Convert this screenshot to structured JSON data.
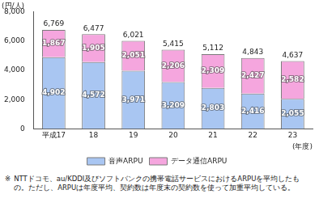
{
  "chart_data": {
    "type": "bar",
    "stacked": true,
    "data_labels": true,
    "grid": false,
    "legend": "bottom",
    "y_label": "(円/人)",
    "x_label": "(年度)",
    "categories": [
      "平成17",
      "18",
      "19",
      "20",
      "21",
      "22",
      "23"
    ],
    "series": [
      {
        "name": "音声ARPU",
        "color": "#a9c6f2",
        "values": [
          4902,
          4572,
          3971,
          3209,
          2803,
          2416,
          2055
        ],
        "value_labels": [
          "4,902",
          "4,572",
          "3,971",
          "3,209",
          "2,803",
          "2,416",
          "2,055"
        ]
      },
      {
        "name": "データ通信ARPU",
        "color": "#f5a6de",
        "values": [
          1867,
          1905,
          2051,
          2206,
          2309,
          2427,
          2582
        ],
        "value_labels": [
          "1,867",
          "1,905",
          "2,051",
          "2,206",
          "2,309",
          "2,427",
          "2,582"
        ]
      }
    ],
    "totals": [
      6769,
      6477,
      6021,
      5415,
      5112,
      4843,
      4637
    ],
    "total_labels": [
      "6,769",
      "6,477",
      "6,021",
      "5,415",
      "5,112",
      "4,843",
      "4,637"
    ],
    "ylim": [
      0,
      8000
    ],
    "yticks": [
      0,
      {
        "value": 2000,
        "label": "2,000"
      },
      {
        "value": 4000,
        "label": "4,000"
      },
      {
        "value": 6000,
        "label": "6,000"
      },
      {
        "value": 8000,
        "label": "8,000"
      }
    ],
    "annotation": [
      "※",
      "NTTドコモ、au/KDDI及びソフトバンクの携帯電話サービスにおけるARPUを平均したもの。ただし、ARPUは年度平均、契約数は年度末の契約数を使って加重平均している。"
    ]
  }
}
